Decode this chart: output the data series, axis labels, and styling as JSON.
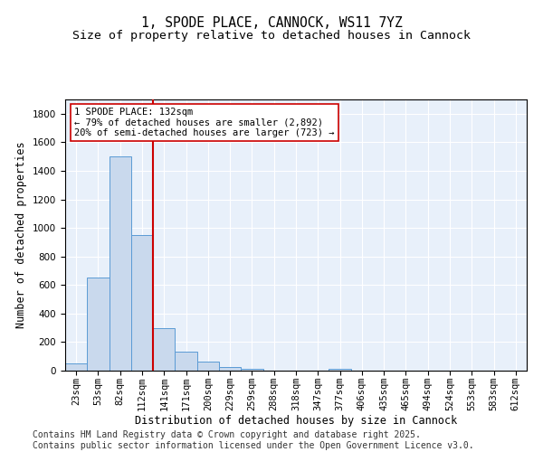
{
  "title": "1, SPODE PLACE, CANNOCK, WS11 7YZ",
  "subtitle": "Size of property relative to detached houses in Cannock",
  "xlabel": "Distribution of detached houses by size in Cannock",
  "ylabel": "Number of detached properties",
  "bin_labels": [
    "23sqm",
    "53sqm",
    "82sqm",
    "112sqm",
    "141sqm",
    "171sqm",
    "200sqm",
    "229sqm",
    "259sqm",
    "288sqm",
    "318sqm",
    "347sqm",
    "377sqm",
    "406sqm",
    "435sqm",
    "465sqm",
    "494sqm",
    "524sqm",
    "553sqm",
    "583sqm",
    "612sqm"
  ],
  "bar_values": [
    50,
    650,
    1500,
    950,
    300,
    135,
    65,
    25,
    10,
    0,
    0,
    0,
    15,
    0,
    0,
    0,
    0,
    0,
    0,
    0,
    0
  ],
  "bar_color": "#c9d9ed",
  "bar_edge_color": "#5b9bd5",
  "vline_color": "#cc0000",
  "vline_pos": 3.5,
  "annotation_line1": "1 SPODE PLACE: 132sqm",
  "annotation_line2": "← 79% of detached houses are smaller (2,892)",
  "annotation_line3": "20% of semi-detached houses are larger (723) →",
  "annotation_box_color": "#cc0000",
  "ylim": [
    0,
    1900
  ],
  "yticks": [
    0,
    200,
    400,
    600,
    800,
    1000,
    1200,
    1400,
    1600,
    1800
  ],
  "footer_line1": "Contains HM Land Registry data © Crown copyright and database right 2025.",
  "footer_line2": "Contains public sector information licensed under the Open Government Licence v3.0.",
  "bg_color": "#e8f0fa",
  "title_fontsize": 10.5,
  "subtitle_fontsize": 9.5,
  "axis_label_fontsize": 8.5,
  "tick_fontsize": 7.5,
  "annotation_fontsize": 7.5,
  "footer_fontsize": 7.0
}
